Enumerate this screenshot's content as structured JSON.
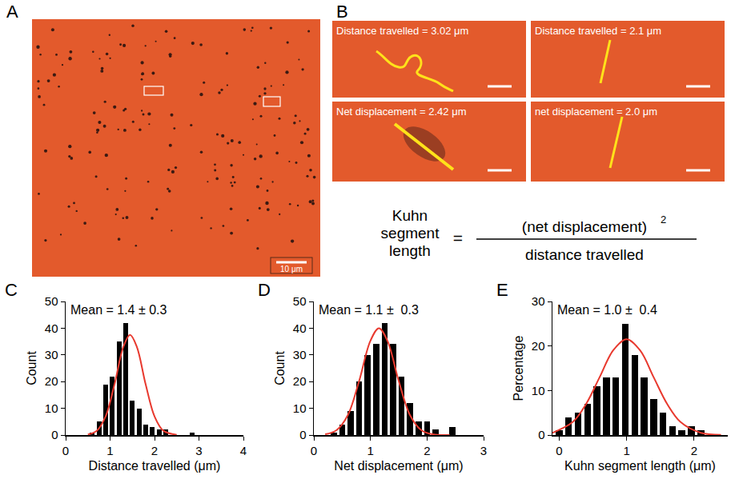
{
  "panel_A": {
    "label": "A",
    "scale_bar": "10 μm"
  },
  "panel_B": {
    "label": "B",
    "images": [
      {
        "text": "Distance travelled = 3.02 μm"
      },
      {
        "text": "Distance travelled = 2.1 μm"
      },
      {
        "text": "Net displacement = 2.42 μm"
      },
      {
        "text": "net displacement = 2.0 μm"
      }
    ]
  },
  "formula": {
    "lhs": "Kuhn segment length",
    "numerator": "(net displacement)",
    "exponent": "2",
    "denominator": "distance travelled"
  },
  "chart_data": [
    {
      "label": "C",
      "type": "histogram",
      "annotation": "Mean = 1.4 ± 0.3",
      "x_label": "Distance travelled (μm)",
      "y_label": "Count",
      "bins": [
        0.525,
        0.675,
        0.825,
        0.975,
        1.125,
        1.275,
        1.425,
        1.575,
        1.725,
        1.875,
        2.025,
        2.175,
        2.325,
        2.475,
        2.625,
        2.775,
        2.925,
        3.075
      ],
      "values": [
        1,
        5,
        19,
        22,
        35,
        42,
        13,
        10,
        4,
        3,
        2,
        2,
        0,
        0,
        0,
        1,
        0
      ],
      "color": "#000000",
      "fit": {
        "type": "line",
        "color": "#e8392e",
        "x": [
          0.5,
          0.7,
          0.9,
          1.1,
          1.3,
          1.45,
          1.6,
          1.8,
          2.0,
          2.2,
          2.5
        ],
        "values": [
          0.25,
          1.6,
          7.0,
          19.0,
          33.1,
          37.5,
          33.1,
          19.0,
          7.0,
          1.6,
          0.1
        ]
      },
      "xlim": [
        0,
        4
      ],
      "xticks": [
        0,
        1,
        2,
        3,
        4
      ],
      "ylim": [
        0,
        50
      ],
      "yticks": [
        0,
        10,
        20,
        30,
        40,
        50
      ],
      "grid": false
    },
    {
      "label": "D",
      "type": "histogram",
      "annotation": "Mean = 1.1 ±  0.3",
      "x_label": "Net displacement (μm)",
      "y_label": "Count",
      "bins": [
        0.275,
        0.425,
        0.575,
        0.725,
        0.875,
        1.025,
        1.175,
        1.325,
        1.475,
        1.625,
        1.775,
        1.925,
        2.075,
        2.225,
        2.375,
        2.525
      ],
      "values": [
        1,
        4,
        9,
        20,
        30,
        34,
        42,
        34,
        22,
        12,
        5,
        5,
        2,
        0,
        3
      ],
      "color": "#000000",
      "fit": {
        "type": "line",
        "color": "#e8392e",
        "x": [
          0.2,
          0.4,
          0.6,
          0.8,
          1.0,
          1.15,
          1.3,
          1.5,
          1.7,
          1.9,
          2.1,
          2.4
        ],
        "values": [
          0.27,
          1.8,
          7.4,
          20.2,
          35.3,
          40,
          35.3,
          20.2,
          7.4,
          1.8,
          0.27,
          0.0
        ]
      },
      "xlim": [
        0,
        3
      ],
      "xticks": [
        0,
        1,
        2,
        3
      ],
      "ylim": [
        0,
        50
      ],
      "yticks": [
        0,
        10,
        20,
        30,
        40,
        50
      ],
      "grid": false
    },
    {
      "label": "E",
      "type": "histogram",
      "annotation": "Mean = 1.0 ±  0.4",
      "x_label": "Kuhn segment length (μm)",
      "y_label": "Percentage",
      "bins": [
        -0.07,
        0.07,
        0.21,
        0.35,
        0.49,
        0.63,
        0.77,
        0.91,
        1.05,
        1.19,
        1.33,
        1.47,
        1.61,
        1.75,
        1.89,
        2.03,
        2.17
      ],
      "values": [
        1,
        4,
        5,
        7,
        11,
        13,
        13,
        25,
        18,
        13,
        8,
        5,
        2,
        1,
        2,
        1
      ],
      "color": "#000000",
      "fit": {
        "type": "line",
        "color": "#e8392e",
        "x": [
          -0.1,
          0.2,
          0.4,
          0.6,
          0.8,
          1.0,
          1.2,
          1.4,
          1.6,
          1.8,
          2.1,
          2.4
        ],
        "values": [
          0.5,
          2.9,
          7.0,
          13.0,
          19.0,
          21.5,
          19.0,
          13.0,
          7.0,
          2.9,
          0.5,
          0.05
        ]
      },
      "xlim": [
        -0.1,
        2.5
      ],
      "xticks": [
        0,
        1,
        2
      ],
      "ylim": [
        0,
        30
      ],
      "yticks": [
        0,
        10,
        20,
        30
      ],
      "grid": false
    }
  ]
}
